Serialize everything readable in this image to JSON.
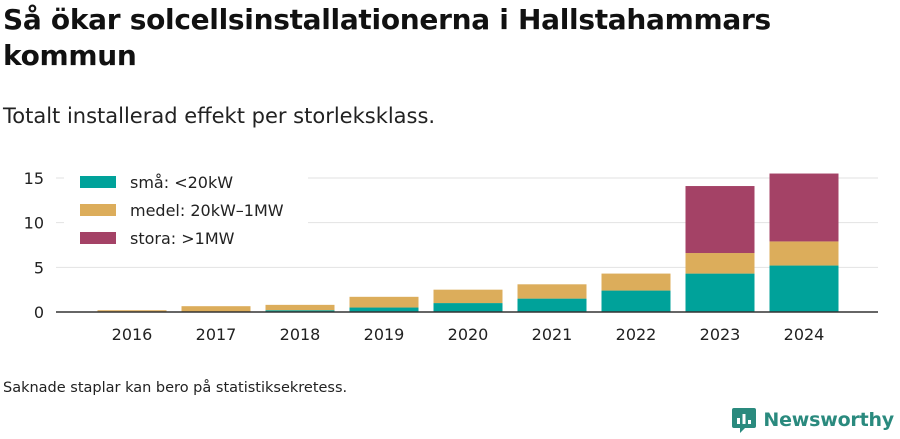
{
  "header": {
    "title": "Så ökar solcellsinstallationerna i Hallstahammars kommun",
    "subtitle": "Totalt installerad effekt per storleksklass."
  },
  "footer": {
    "note": "Saknade staplar kan bero på statistiksekretess.",
    "brand": "Newsworthy"
  },
  "chart_data": {
    "type": "bar",
    "stacked": true,
    "categories": [
      "2016",
      "2017",
      "2018",
      "2019",
      "2020",
      "2021",
      "2022",
      "2023",
      "2024"
    ],
    "series": [
      {
        "name": "små: <20kW",
        "color": "#00a29a",
        "values": [
          0.0,
          0.05,
          0.2,
          0.5,
          1.0,
          1.5,
          2.4,
          4.3,
          5.2
        ]
      },
      {
        "name": "medel: 20kW–1MW",
        "color": "#dcad5b",
        "values": [
          0.2,
          0.6,
          0.6,
          1.2,
          1.5,
          1.6,
          1.9,
          2.3,
          2.7
        ]
      },
      {
        "name": "stora: >1MW",
        "color": "#a44266",
        "values": [
          0,
          0,
          0,
          0,
          0,
          0,
          0,
          7.5,
          7.6
        ]
      }
    ],
    "ylim": [
      0,
      15
    ],
    "yticks": [
      0,
      5,
      10,
      15
    ],
    "grid": true,
    "legend_position": "top-left",
    "xlabel": "",
    "ylabel": ""
  }
}
